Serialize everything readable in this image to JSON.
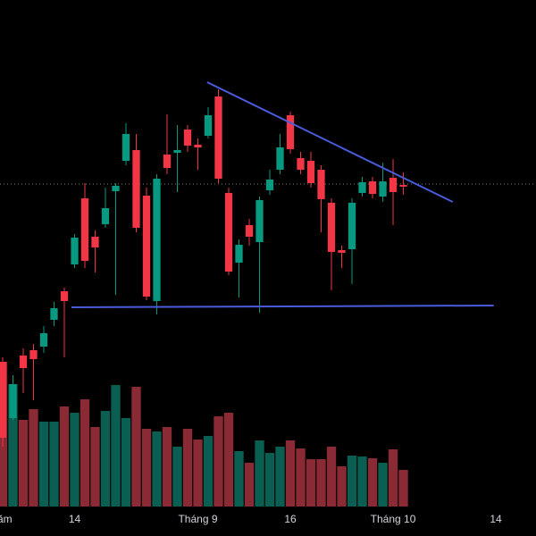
{
  "chart_data": {
    "type": "candlestick",
    "open": [
      195,
      132,
      202,
      208,
      212,
      242,
      274,
      304,
      378,
      335,
      349,
      386,
      420,
      432,
      381,
      263,
      427,
      429,
      455,
      438,
      448,
      492,
      384,
      306,
      348,
      329,
      387,
      410,
      471,
      423,
      420,
      410,
      373,
      320,
      321,
      384,
      397,
      380,
      401,
      393
    ],
    "high": [
      200,
      180,
      210,
      215,
      235,
      262,
      278,
      338,
      395,
      342,
      390,
      395,
      462,
      450,
      390,
      405,
      472,
      460,
      460,
      445,
      480,
      500,
      390,
      332,
      355,
      380,
      410,
      450,
      475,
      430,
      430,
      415,
      378,
      325,
      378,
      402,
      402,
      418,
      422,
      407
    ],
    "low": [
      100,
      130,
      160,
      152,
      205,
      235,
      200,
      300,
      300,
      295,
      345,
      270,
      415,
      340,
      264,
      248,
      405,
      385,
      430,
      410,
      445,
      395,
      292,
      267,
      325,
      250,
      382,
      405,
      428,
      405,
      390,
      340,
      275,
      300,
      282,
      380,
      378,
      374,
      348,
      382
    ],
    "close": [
      110,
      170,
      188,
      198,
      227,
      255,
      263,
      334,
      308,
      323,
      367,
      392,
      450,
      345,
      268,
      400,
      412,
      432,
      437,
      435,
      471,
      400,
      296,
      326,
      335,
      376,
      399,
      435,
      433,
      410,
      395,
      377,
      318,
      317,
      373,
      396,
      383,
      397,
      385,
      391
    ],
    "volume": [
      162,
      137,
      97,
      109,
      95,
      95,
      112,
      105,
      120,
      89,
      107,
      136,
      99,
      134,
      87,
      84,
      89,
      67,
      87,
      75,
      79,
      101,
      105,
      62,
      49,
      74,
      60,
      67,
      74,
      65,
      53,
      53,
      67,
      45,
      57,
      56,
      54,
      49,
      64,
      41
    ],
    "up_color": "#089981",
    "down_color": "#f23645",
    "volume_up_color": "#0b5e52",
    "volume_down_color": "#8a2a35",
    "xlim": [
      -0.26,
      51.91
    ],
    "ylim": [
      0,
      600
    ],
    "volume_ylim": [
      0,
      600
    ],
    "xticks": [
      {
        "value": 0.2,
        "label": "ăm"
      },
      {
        "value": 7,
        "label": "14"
      },
      {
        "value": 19,
        "label": "Tháng 9"
      },
      {
        "value": 28,
        "label": "16"
      },
      {
        "value": 38,
        "label": "Tháng 10"
      },
      {
        "value": 48,
        "label": "14"
      }
    ],
    "price_line": 394,
    "trend_lines": [
      {
        "x": [
          19.9,
          43.8
        ],
        "y": [
          508,
          374
        ],
        "color": "#4a5bdc"
      },
      {
        "x": [
          6.7,
          47.8
        ],
        "y": [
          256,
          258
        ],
        "color": "#4a5bdc"
      }
    ]
  }
}
